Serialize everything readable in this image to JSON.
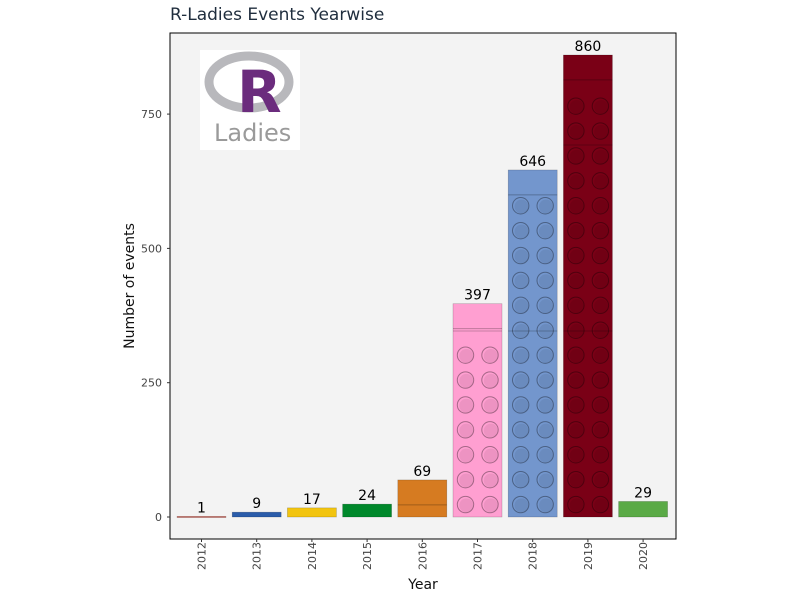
{
  "chart_data": {
    "type": "bar",
    "title": "R-Ladies Events Yearwise",
    "xlabel": "Year",
    "ylabel": "Number of events",
    "categories": [
      "2012",
      "2013",
      "2014",
      "2015",
      "2016",
      "2017",
      "2018",
      "2019",
      "2020"
    ],
    "values": [
      1,
      9,
      17,
      24,
      69,
      397,
      646,
      860,
      29
    ],
    "colors": [
      "#c0392b",
      "#2a5caa",
      "#f2c40f",
      "#00882b",
      "#d67b21",
      "#ff9fd1",
      "#7396cd",
      "#7a0016",
      "#5aaa46"
    ],
    "yticks": [
      0,
      250,
      500,
      750
    ],
    "ylim": [
      -40,
      900
    ],
    "grid": false,
    "panel_background": "#f3f3f3",
    "logo": {
      "top_text": "R",
      "bottom_text": "Ladies"
    }
  }
}
